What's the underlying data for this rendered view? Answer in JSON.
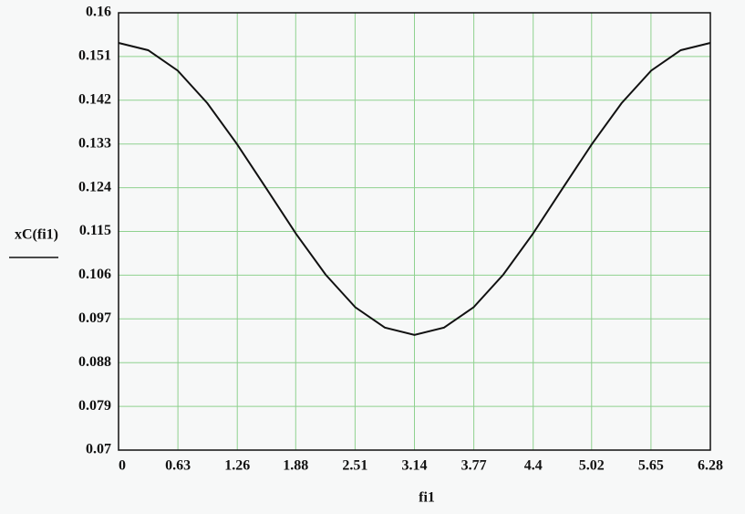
{
  "chart_data": {
    "type": "line",
    "x_label": "fi1",
    "y_label": "xC(fi1)",
    "x": [
      0,
      0.314,
      0.628,
      0.942,
      1.256,
      1.57,
      1.884,
      2.198,
      2.512,
      2.826,
      3.14,
      3.454,
      3.768,
      4.082,
      4.396,
      4.71,
      5.024,
      5.338,
      5.652,
      5.966,
      6.28
    ],
    "series": [
      {
        "name": "xC(fi1)",
        "color": "#111111",
        "values": [
          0.1538,
          0.1523,
          0.1481,
          0.1414,
          0.133,
          0.1238,
          0.1145,
          0.1061,
          0.0994,
          0.0952,
          0.0937,
          0.0952,
          0.0994,
          0.1061,
          0.1145,
          0.1238,
          0.133,
          0.1414,
          0.1481,
          0.1523,
          0.1538
        ]
      }
    ],
    "xlim": [
      0,
      6.28
    ],
    "ylim": [
      0.07,
      0.16
    ],
    "xticks": [
      0,
      0.63,
      1.26,
      1.88,
      2.51,
      3.14,
      3.77,
      4.4,
      5.02,
      5.65,
      6.28
    ],
    "yticks": [
      0.07,
      0.079,
      0.088,
      0.097,
      0.106,
      0.115,
      0.124,
      0.133,
      0.142,
      0.151,
      0.16
    ],
    "grid": true,
    "grid_color": "#8fd18f"
  }
}
